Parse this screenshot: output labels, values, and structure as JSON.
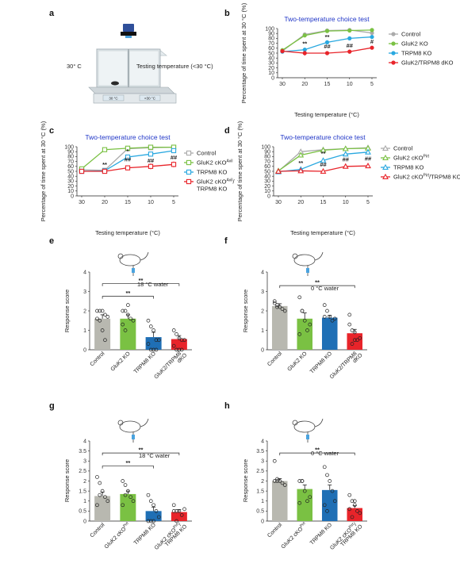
{
  "panel_a": {
    "label": "a",
    "left_text": "30° C",
    "right_text": "Testing temperature (<30 °C)",
    "plate_left": "30 °C",
    "plate_right": "<30 °C"
  },
  "colors": {
    "grey": "#aaaaaa",
    "green": "#7ac143",
    "blue": "#29a8e0",
    "red": "#e8242a",
    "greybar": "#b8b8b0",
    "greenbar": "#7ac143",
    "bluebar": "#1f6fb5",
    "redbar": "#e8242a",
    "title": "#1f35c7"
  },
  "chart_data": [
    {
      "id": "b",
      "label": "b",
      "type": "line",
      "title": "Two-temperature choice test",
      "xlabel": "Testing temperature (°C)",
      "ylabel": "Percentage of time spent at 30 °C (%)",
      "x": [
        30,
        20,
        15,
        10,
        5
      ],
      "ylim": [
        0,
        100
      ],
      "yticks": [
        "0",
        "10",
        "20",
        "30",
        "40",
        "50",
        "60",
        "70",
        "80",
        "90",
        "100"
      ],
      "marker": "circle",
      "legend": [
        {
          "name": "Control",
          "sup": ""
        },
        {
          "name": "GluK2 KO",
          "sup": ""
        },
        {
          "name": "TRPM8 KO",
          "sup": ""
        },
        {
          "name": "GluK2/TRPM8 dKO",
          "sup": ""
        }
      ],
      "series": [
        {
          "color": "grey",
          "values": [
            54,
            88,
            96,
            97,
            91
          ],
          "err": [
            3,
            3,
            2,
            2,
            3
          ]
        },
        {
          "color": "green",
          "values": [
            56,
            86,
            95,
            96,
            97
          ],
          "err": [
            3,
            3,
            2,
            2,
            2
          ]
        },
        {
          "color": "blue",
          "values": [
            53,
            57,
            72,
            80,
            83
          ],
          "err": [
            4,
            4,
            4,
            4,
            4
          ]
        },
        {
          "color": "red",
          "values": [
            54,
            50,
            50,
            53,
            61
          ],
          "err": [
            4,
            5,
            4,
            4,
            4
          ]
        }
      ],
      "annotations": [
        {
          "x": 20,
          "y": 65,
          "text": "**"
        },
        {
          "x": 15,
          "y": 79,
          "text": "**"
        },
        {
          "x": 15,
          "y": 60,
          "text": "##"
        },
        {
          "x": 10,
          "y": 61,
          "text": "##"
        },
        {
          "x": 5,
          "y": 69,
          "text": "#"
        }
      ]
    },
    {
      "id": "c",
      "label": "c",
      "type": "line",
      "title": "Two-temperature choice test",
      "xlabel": "Testing temperature (°C)",
      "ylabel": "Percentage of time spent at 30 °C (%)",
      "x": [
        30,
        20,
        15,
        10,
        5
      ],
      "ylim": [
        0,
        100
      ],
      "yticks": [
        "0",
        "10",
        "20",
        "30",
        "40",
        "50",
        "60",
        "70",
        "80",
        "90",
        "100"
      ],
      "marker": "square",
      "legend": [
        {
          "name": "Control",
          "sup": ""
        },
        {
          "name": "GluK2 cKO",
          "sup": "Avil"
        },
        {
          "name": "TRPM8 KO",
          "sup": ""
        },
        {
          "name": "GluK2 cKO",
          "sup": "Avil",
          "after": "/",
          "line2": "TRPM8 KO"
        }
      ],
      "series": [
        {
          "color": "grey",
          "values": [
            53,
            52,
            96,
            98,
            99
          ],
          "err": [
            4,
            3,
            2,
            1,
            1
          ]
        },
        {
          "color": "green",
          "values": [
            55,
            94,
            97,
            99,
            99
          ],
          "err": [
            4,
            4,
            2,
            1,
            1
          ]
        },
        {
          "color": "blue",
          "values": [
            50,
            51,
            79,
            85,
            92
          ],
          "err": [
            3,
            4,
            4,
            4,
            3
          ]
        },
        {
          "color": "red",
          "values": [
            50,
            50,
            57,
            60,
            64
          ],
          "err": [
            3,
            4,
            5,
            6,
            6
          ]
        }
      ],
      "annotations": [
        {
          "x": 20,
          "y": 60,
          "text": "**"
        },
        {
          "x": 15,
          "y": 87,
          "text": "*"
        },
        {
          "x": 15,
          "y": 70,
          "text": "##"
        },
        {
          "x": 10,
          "y": 68,
          "text": "##"
        },
        {
          "x": 5,
          "y": 74,
          "text": "##"
        }
      ]
    },
    {
      "id": "d",
      "label": "d",
      "type": "line",
      "title": "Two-temperature choice test",
      "xlabel": "Testing temperature (°C)",
      "ylabel": "Percentage of time spent at 30 °C (%)",
      "x": [
        30,
        20,
        15,
        10,
        5
      ],
      "ylim": [
        0,
        100
      ],
      "yticks": [
        "0",
        "10",
        "20",
        "30",
        "40",
        "50",
        "60",
        "70",
        "80",
        "90",
        "100"
      ],
      "marker": "triangle",
      "legend": [
        {
          "name": "Control",
          "sup": ""
        },
        {
          "name": "GluK2 cKO",
          "sup": "Pirt"
        },
        {
          "name": "TRPM8 KO",
          "sup": ""
        },
        {
          "name": "GluK2 cKO",
          "sup": "Pirt",
          "after": "/TRPM8 KO"
        }
      ],
      "series": [
        {
          "color": "grey",
          "values": [
            50,
            90,
            94,
            96,
            98
          ],
          "err": [
            3,
            3,
            2,
            2,
            1
          ]
        },
        {
          "color": "green",
          "values": [
            51,
            83,
            93,
            96,
            97
          ],
          "err": [
            3,
            5,
            2,
            2,
            2
          ]
        },
        {
          "color": "blue",
          "values": [
            49,
            54,
            72,
            85,
            89
          ],
          "err": [
            3,
            4,
            4,
            3,
            2
          ]
        },
        {
          "color": "red",
          "values": [
            50,
            51,
            50,
            60,
            61
          ],
          "err": [
            3,
            4,
            4,
            4,
            4
          ]
        }
      ],
      "annotations": [
        {
          "x": 20,
          "y": 63,
          "text": "**"
        },
        {
          "x": 15,
          "y": 82,
          "text": "**"
        },
        {
          "x": 15,
          "y": 60,
          "text": "##"
        },
        {
          "x": 10,
          "y": 70,
          "text": "##"
        },
        {
          "x": 5,
          "y": 72,
          "text": "##"
        }
      ]
    },
    {
      "id": "e",
      "label": "e",
      "type": "bar",
      "stimulus": "18 °C water",
      "ylabel": "Response score",
      "ylim": [
        0,
        4
      ],
      "yticks": [
        "0",
        "1",
        "2",
        "3",
        "4"
      ],
      "categories": [
        {
          "line1": "Control",
          "line2": ""
        },
        {
          "line1": "GluK2 KO",
          "line2": ""
        },
        {
          "line1": "TRPM8 KO",
          "line2": ""
        },
        {
          "line1": "GluK2/TRPM8",
          "line2": "dKO"
        }
      ],
      "bar_colors": [
        "greybar",
        "greenbar",
        "bluebar",
        "redbar"
      ],
      "values": [
        1.6,
        1.6,
        0.65,
        0.55
      ],
      "err": [
        0.2,
        0.2,
        0.25,
        0.18
      ],
      "points": [
        [
          2,
          2,
          2,
          1.8,
          1.7,
          1.6,
          1.5,
          1,
          0.5
        ],
        [
          2,
          2,
          1.8,
          1.6,
          1.5,
          1.3,
          1.0,
          2.3
        ],
        [
          1.5,
          1.2,
          1.0,
          0.5,
          0.5,
          0.3,
          0,
          0,
          0
        ],
        [
          1.0,
          0.8,
          0.6,
          0.5,
          0.5,
          0.2,
          0,
          0,
          0
        ]
      ],
      "brackets": [
        {
          "from": 0,
          "to": 3,
          "level": 3.4,
          "text": "**"
        },
        {
          "from": 0,
          "to": 2,
          "level": 2.75,
          "text": "**"
        }
      ]
    },
    {
      "id": "f",
      "label": "f",
      "type": "bar",
      "stimulus": "0 °C water",
      "ylabel": "Response score",
      "ylim": [
        0,
        4
      ],
      "yticks": [
        "0",
        "1",
        "2",
        "3",
        "4"
      ],
      "categories": [
        {
          "line1": "Control",
          "line2": ""
        },
        {
          "line1": "GluK2 KO",
          "line2": ""
        },
        {
          "line1": "TRPM8 KO",
          "line2": ""
        },
        {
          "line1": "GluK2/TRPM8",
          "line2": "dKO"
        }
      ],
      "bar_colors": [
        "greybar",
        "greenbar",
        "bluebar",
        "redbar"
      ],
      "values": [
        2.25,
        1.6,
        1.65,
        0.85
      ],
      "err": [
        0.12,
        0.3,
        0.12,
        0.2
      ],
      "points": [
        [
          2.5,
          2.3,
          2.2,
          2.1,
          2.0,
          2.4,
          2.2
        ],
        [
          2.7,
          2.0,
          1.5,
          1.0,
          1.3,
          0.8,
          2.0
        ],
        [
          2.3,
          2.0,
          1.7,
          1.5,
          1.6,
          1.7
        ],
        [
          1.8,
          1.0,
          0.5,
          0.5,
          0.6,
          1.3,
          0.3,
          0.9
        ]
      ],
      "brackets": [
        {
          "from": 0,
          "to": 3,
          "level": 3.3,
          "text": "**"
        }
      ]
    },
    {
      "id": "g",
      "label": "g",
      "type": "bar",
      "stimulus": "18 °C water",
      "ylabel": "Response score",
      "ylim": [
        0,
        4
      ],
      "yticks": [
        "0",
        "0.5",
        "1",
        "1.5",
        "2",
        "2.5",
        "3",
        "3.5",
        "4"
      ],
      "categories": [
        {
          "line1": "Control",
          "line2": "",
          "sup": ""
        },
        {
          "line1": "GluK2 cKO",
          "line2": "",
          "sup": "Pirt"
        },
        {
          "line1": "TRPM8 KO",
          "line2": "",
          "sup": ""
        },
        {
          "line1": "GluK2 cKO",
          "line2": "TRPM8 KO",
          "sup": "Pirt",
          "after": "/"
        }
      ],
      "bar_colors": [
        "greybar",
        "greenbar",
        "bluebar",
        "redbar"
      ],
      "values": [
        1.25,
        1.35,
        0.5,
        0.45
      ],
      "err": [
        0.2,
        0.15,
        0.2,
        0.12
      ],
      "points": [
        [
          2.2,
          1.9,
          1.5,
          1.2,
          1.0,
          0.8,
          1.3
        ],
        [
          2.0,
          1.8,
          1.5,
          1.2,
          1.0,
          0.8,
          1.3
        ],
        [
          1.3,
          1.0,
          0.8,
          0.5,
          0.2,
          0,
          0,
          0
        ],
        [
          0.5,
          0.5,
          0.5,
          0.3,
          0.6,
          0.8,
          0
        ]
      ],
      "brackets": [
        {
          "from": 0,
          "to": 3,
          "level": 3.4,
          "text": "**"
        },
        {
          "from": 0,
          "to": 2,
          "level": 2.75,
          "text": "**"
        }
      ]
    },
    {
      "id": "h",
      "label": "h",
      "type": "bar",
      "stimulus": "0 °C water",
      "ylabel": "Response score",
      "ylim": [
        0,
        4
      ],
      "yticks": [
        "0",
        "0.5",
        "1",
        "1.5",
        "2",
        "2.5",
        "3",
        "3.5",
        "4"
      ],
      "categories": [
        {
          "line1": "Control",
          "line2": "",
          "sup": ""
        },
        {
          "line1": "GluK2 cKO",
          "line2": "",
          "sup": "Pirt"
        },
        {
          "line1": "TRPM8 KO",
          "line2": "",
          "sup": ""
        },
        {
          "line1": "GluK2 cKO",
          "line2": "TRPM8 KO",
          "sup": "Pirt",
          "after": "/"
        }
      ],
      "bar_colors": [
        "greybar",
        "greenbar",
        "bluebar",
        "redbar"
      ],
      "values": [
        2.0,
        1.6,
        1.55,
        0.65
      ],
      "err": [
        0.12,
        0.2,
        0.25,
        0.12
      ],
      "points": [
        [
          3.0,
          2.0,
          2.0,
          1.9,
          1.8,
          2.0,
          2.1
        ],
        [
          2.0,
          2.0,
          1.5,
          1.0,
          1.2,
          0.9,
          2.0
        ],
        [
          2.7,
          2.3,
          2.0,
          1.5,
          1.0,
          0.8,
          0.5
        ],
        [
          1.3,
          1.0,
          0.8,
          0.5,
          0.4,
          0.6,
          0.2,
          1.0
        ]
      ],
      "brackets": [
        {
          "from": 0,
          "to": 3,
          "level": 3.4,
          "text": "**"
        }
      ]
    }
  ]
}
